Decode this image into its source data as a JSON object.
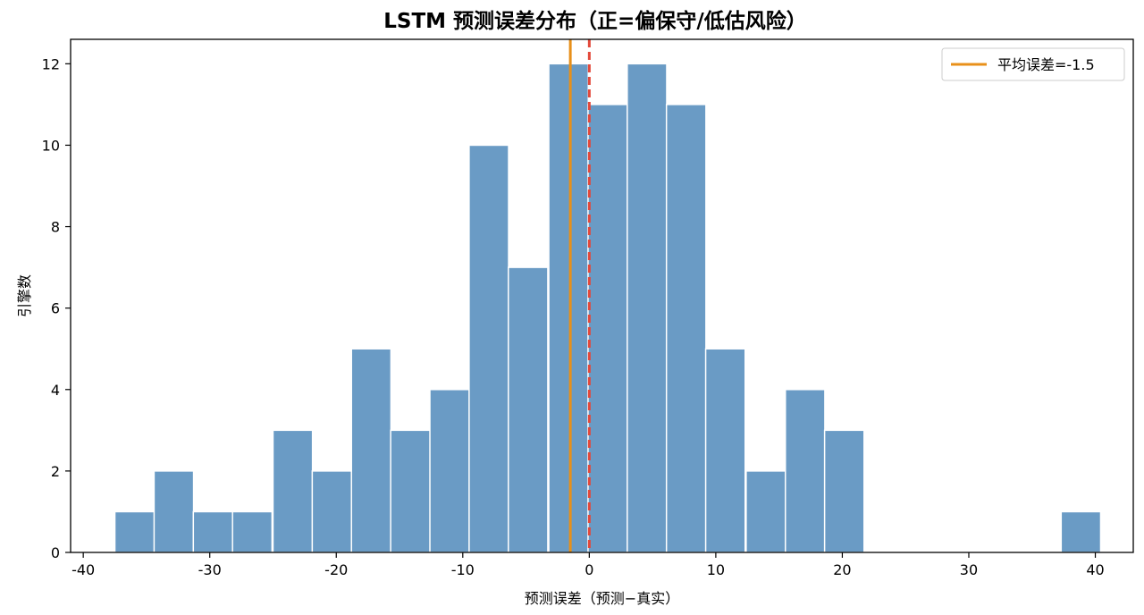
{
  "chart_data": {
    "type": "bar",
    "title": "LSTM 预测误差分布（正=偏保守/低估风险）",
    "xlabel": "预测误差（预测−真实）",
    "ylabel": "引擎数",
    "xlim": [
      -41,
      43
    ],
    "ylim": [
      0,
      12.6
    ],
    "xticks": [
      -40,
      -30,
      -20,
      -10,
      0,
      10,
      20,
      30,
      40
    ],
    "yticks": [
      0,
      2,
      4,
      6,
      8,
      10,
      12
    ],
    "bin_width": 3.12,
    "bars": [
      {
        "x0": -37.5,
        "count": 1
      },
      {
        "x0": -34.4,
        "count": 2
      },
      {
        "x0": -31.3,
        "count": 1
      },
      {
        "x0": -28.2,
        "count": 1
      },
      {
        "x0": -25.0,
        "count": 3
      },
      {
        "x0": -21.9,
        "count": 2
      },
      {
        "x0": -18.8,
        "count": 5
      },
      {
        "x0": -15.7,
        "count": 3
      },
      {
        "x0": -12.6,
        "count": 4
      },
      {
        "x0": -9.5,
        "count": 10
      },
      {
        "x0": -6.4,
        "count": 7
      },
      {
        "x0": -3.2,
        "count": 12
      },
      {
        "x0": -0.1,
        "count": 11
      },
      {
        "x0": 3.0,
        "count": 12
      },
      {
        "x0": 6.1,
        "count": 11
      },
      {
        "x0": 9.2,
        "count": 5
      },
      {
        "x0": 12.4,
        "count": 2
      },
      {
        "x0": 15.5,
        "count": 4
      },
      {
        "x0": 18.6,
        "count": 3
      },
      {
        "x0": 21.7,
        "count": 0
      },
      {
        "x0": 24.8,
        "count": 0
      },
      {
        "x0": 27.9,
        "count": 0
      },
      {
        "x0": 31.1,
        "count": 0
      },
      {
        "x0": 34.2,
        "count": 0
      },
      {
        "x0": 37.3,
        "count": 1
      }
    ],
    "mean_line": {
      "x": -1.5,
      "label": "平均误差=-1.5",
      "color": "#e8901a"
    },
    "zero_line": {
      "x": 0,
      "color": "#e3483a",
      "style": "dashed"
    },
    "bar_color": "#6a9bc5",
    "bar_edge_color": "#ffffff",
    "legend_position": "top-right",
    "grid": false
  }
}
